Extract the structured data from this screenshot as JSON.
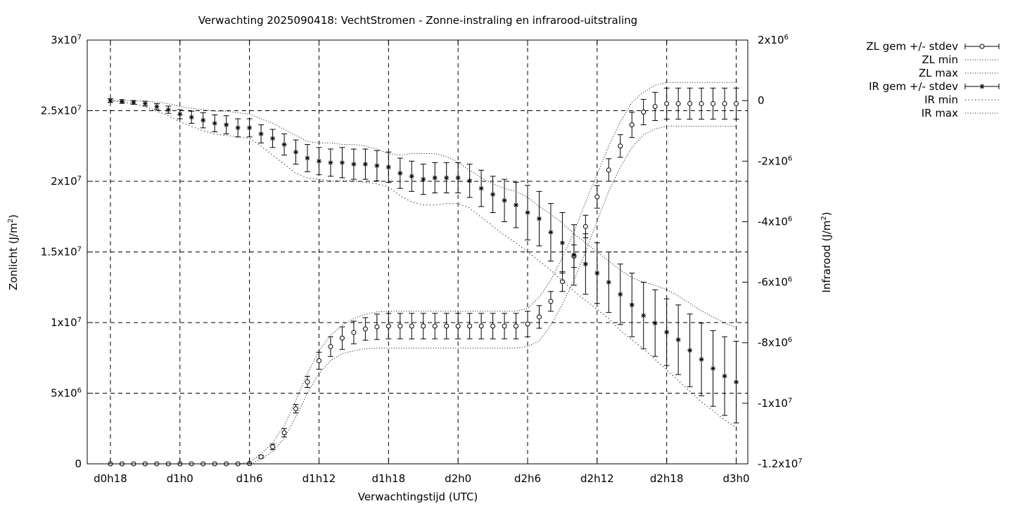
{
  "chart_data": {
    "type": "line",
    "title": "Verwachting 2025090418: VechtStromen - Zonne-instraling en infrarood-uitstraling",
    "xlabel": "Verwachtingstijd (UTC)",
    "ylabel_left": {
      "text": "Zonlicht (J/m",
      "sup": "2",
      "tail": ")"
    },
    "ylabel_right": {
      "text": "Infrarood (J/m",
      "sup": "2",
      "tail": ")"
    },
    "x_range_hours": [
      -2,
      55
    ],
    "y_left_range": [
      0,
      30000000
    ],
    "y_right_range": [
      -12000000,
      2000000
    ],
    "grid": true,
    "legend_position": "outside-right-top",
    "x_ticks": [
      {
        "h": 0,
        "label": "d0h18"
      },
      {
        "h": 6,
        "label": "d1h0"
      },
      {
        "h": 12,
        "label": "d1h6"
      },
      {
        "h": 18,
        "label": "d1h12"
      },
      {
        "h": 24,
        "label": "d1h18"
      },
      {
        "h": 30,
        "label": "d2h0"
      },
      {
        "h": 36,
        "label": "d2h6"
      },
      {
        "h": 42,
        "label": "d2h12"
      },
      {
        "h": 48,
        "label": "d2h18"
      },
      {
        "h": 54,
        "label": "d3h0"
      }
    ],
    "y_left_ticks": [
      {
        "v": 0,
        "m": "0",
        "e": ""
      },
      {
        "v": 5000000,
        "m": "5x10",
        "e": "6"
      },
      {
        "v": 10000000,
        "m": "1x10",
        "e": "7"
      },
      {
        "v": 15000000,
        "m": "1.5x10",
        "e": "7"
      },
      {
        "v": 20000000,
        "m": "2x10",
        "e": "7"
      },
      {
        "v": 25000000,
        "m": "2.5x10",
        "e": "7"
      },
      {
        "v": 30000000,
        "m": "3x10",
        "e": "7"
      }
    ],
    "y_right_ticks": [
      {
        "v": -12000000,
        "m": "-1.2x10",
        "e": "7"
      },
      {
        "v": -10000000,
        "m": "-1x10",
        "e": "7"
      },
      {
        "v": -8000000,
        "m": "-8x10",
        "e": "6"
      },
      {
        "v": -6000000,
        "m": "-6x10",
        "e": "6"
      },
      {
        "v": -4000000,
        "m": "-4x10",
        "e": "6"
      },
      {
        "v": -2000000,
        "m": "-2x10",
        "e": "6"
      },
      {
        "v": 0,
        "m": "0",
        "e": ""
      },
      {
        "v": 2000000,
        "m": "2x10",
        "e": "6"
      }
    ],
    "x_hours": [
      0,
      1,
      2,
      3,
      4,
      5,
      6,
      7,
      8,
      9,
      10,
      11,
      12,
      13,
      14,
      15,
      16,
      17,
      18,
      19,
      20,
      21,
      22,
      23,
      24,
      25,
      26,
      27,
      28,
      29,
      30,
      31,
      32,
      33,
      34,
      35,
      36,
      37,
      38,
      39,
      40,
      41,
      42,
      43,
      44,
      45,
      46,
      47,
      48,
      49,
      50,
      51,
      52,
      53,
      54
    ],
    "series": [
      {
        "name": "ZL gem +/- stdev",
        "axis": "left",
        "kind": "errorbar-circle",
        "values": [
          0,
          0,
          0,
          0,
          0,
          0,
          0,
          0,
          0,
          0,
          0,
          0,
          20000,
          500000,
          1200000,
          2200000,
          3900000,
          5800000,
          7300000,
          8300000,
          8900000,
          9300000,
          9550000,
          9700000,
          9750000,
          9750000,
          9750000,
          9750000,
          9750000,
          9750000,
          9750000,
          9750000,
          9750000,
          9750000,
          9750000,
          9750000,
          9900000,
          10400000,
          11500000,
          12900000,
          14700000,
          16800000,
          18900000,
          20800000,
          22500000,
          24000000,
          24900000,
          25300000,
          25500000,
          25500000,
          25500000,
          25500000,
          25500000,
          25500000,
          25500000
        ],
        "stdev": [
          0,
          0,
          0,
          0,
          0,
          0,
          0,
          0,
          0,
          0,
          0,
          0,
          0,
          100000,
          200000,
          300000,
          300000,
          400000,
          600000,
          700000,
          800000,
          800000,
          800000,
          900000,
          900000,
          900000,
          900000,
          900000,
          900000,
          900000,
          900000,
          900000,
          900000,
          900000,
          900000,
          900000,
          900000,
          800000,
          700000,
          700000,
          800000,
          800000,
          800000,
          800000,
          800000,
          900000,
          900000,
          1000000,
          1100000,
          1100000,
          1100000,
          1100000,
          1100000,
          1100000,
          1100000
        ]
      },
      {
        "name": "ZL min",
        "axis": "left",
        "kind": "dotted",
        "values": [
          0,
          0,
          0,
          0,
          0,
          0,
          0,
          0,
          0,
          0,
          0,
          0,
          0,
          300000,
          900000,
          1800000,
          3300000,
          5000000,
          6400000,
          7300000,
          7800000,
          8000000,
          8150000,
          8200000,
          8200000,
          8200000,
          8200000,
          8200000,
          8200000,
          8200000,
          8200000,
          8200000,
          8200000,
          8200000,
          8200000,
          8200000,
          8300000,
          8700000,
          9800000,
          11300000,
          13000000,
          15000000,
          17200000,
          19300000,
          21000000,
          22400000,
          23300000,
          23700000,
          23900000,
          23900000,
          23900000,
          23900000,
          23900000,
          23900000,
          23900000
        ]
      },
      {
        "name": "ZL max",
        "axis": "left",
        "kind": "dotted",
        "values": [
          0,
          0,
          0,
          0,
          0,
          0,
          0,
          0,
          0,
          0,
          0,
          0,
          100000,
          700000,
          1500000,
          2700000,
          4500000,
          6400000,
          8000000,
          9100000,
          9800000,
          10300000,
          10600000,
          10750000,
          10800000,
          10800000,
          10800000,
          10800000,
          10800000,
          10800000,
          10800000,
          10800000,
          10800000,
          10800000,
          10800000,
          10800000,
          11000000,
          11800000,
          13000000,
          14600000,
          16400000,
          18500000,
          20500000,
          22500000,
          24200000,
          25600000,
          26300000,
          26800000,
          27000000,
          27000000,
          27000000,
          27000000,
          27000000,
          27000000,
          27000000
        ]
      },
      {
        "name": "IR gem +/- stdev",
        "axis": "right",
        "kind": "errorbar-star",
        "values": [
          0,
          -30000,
          -60000,
          -100000,
          -200000,
          -300000,
          -450000,
          -550000,
          -650000,
          -750000,
          -800000,
          -900000,
          -900000,
          -1100000,
          -1250000,
          -1450000,
          -1700000,
          -1900000,
          -2000000,
          -2050000,
          -2050000,
          -2100000,
          -2100000,
          -2150000,
          -2200000,
          -2400000,
          -2500000,
          -2600000,
          -2550000,
          -2550000,
          -2550000,
          -2650000,
          -2900000,
          -3100000,
          -3300000,
          -3450000,
          -3700000,
          -3900000,
          -4350000,
          -4700000,
          -5100000,
          -5400000,
          -5700000,
          -6000000,
          -6400000,
          -6750000,
          -7100000,
          -7350000,
          -7650000,
          -7900000,
          -8250000,
          -8550000,
          -8850000,
          -9100000,
          -9300000
        ],
        "stdev": [
          60000,
          60000,
          60000,
          80000,
          100000,
          120000,
          150000,
          200000,
          250000,
          280000,
          300000,
          300000,
          300000,
          300000,
          300000,
          350000,
          400000,
          450000,
          450000,
          450000,
          500000,
          500000,
          500000,
          500000,
          500000,
          500000,
          500000,
          500000,
          500000,
          500000,
          500000,
          550000,
          600000,
          600000,
          700000,
          750000,
          900000,
          900000,
          950000,
          1000000,
          1000000,
          1000000,
          1000000,
          1000000,
          1000000,
          1050000,
          1100000,
          1100000,
          1100000,
          1150000,
          1200000,
          1200000,
          1250000,
          1300000,
          1350000
        ]
      },
      {
        "name": "IR min",
        "axis": "right",
        "kind": "dotted",
        "values": [
          0,
          -50000,
          -100000,
          -200000,
          -350000,
          -500000,
          -700000,
          -850000,
          -1000000,
          -1100000,
          -1150000,
          -1200000,
          -1250000,
          -1500000,
          -1800000,
          -2100000,
          -2400000,
          -2550000,
          -2600000,
          -2650000,
          -2650000,
          -2650000,
          -2700000,
          -2750000,
          -2850000,
          -3150000,
          -3350000,
          -3450000,
          -3450000,
          -3400000,
          -3400000,
          -3550000,
          -3850000,
          -4150000,
          -4450000,
          -4700000,
          -5000000,
          -5300000,
          -5600000,
          -5950000,
          -6300000,
          -6600000,
          -6900000,
          -7200000,
          -7600000,
          -7900000,
          -8200000,
          -8550000,
          -8900000,
          -9250000,
          -9600000,
          -9950000,
          -10250000,
          -10550000,
          -10800000
        ]
      },
      {
        "name": "IR max",
        "axis": "right",
        "kind": "dotted",
        "values": [
          0,
          0,
          0,
          -20000,
          -50000,
          -100000,
          -200000,
          -250000,
          -300000,
          -350000,
          -350000,
          -400000,
          -450000,
          -600000,
          -750000,
          -950000,
          -1150000,
          -1350000,
          -1400000,
          -1400000,
          -1450000,
          -1450000,
          -1500000,
          -1600000,
          -1750000,
          -1800000,
          -1750000,
          -1750000,
          -1750000,
          -1850000,
          -2050000,
          -2300000,
          -2550000,
          -2750000,
          -2900000,
          -3000000,
          -3200000,
          -3500000,
          -3750000,
          -4050000,
          -4400000,
          -4700000,
          -5000000,
          -5300000,
          -5600000,
          -5850000,
          -6000000,
          -6100000,
          -6250000,
          -6450000,
          -6700000,
          -6950000,
          -7150000,
          -7350000,
          -7500000
        ]
      }
    ]
  }
}
